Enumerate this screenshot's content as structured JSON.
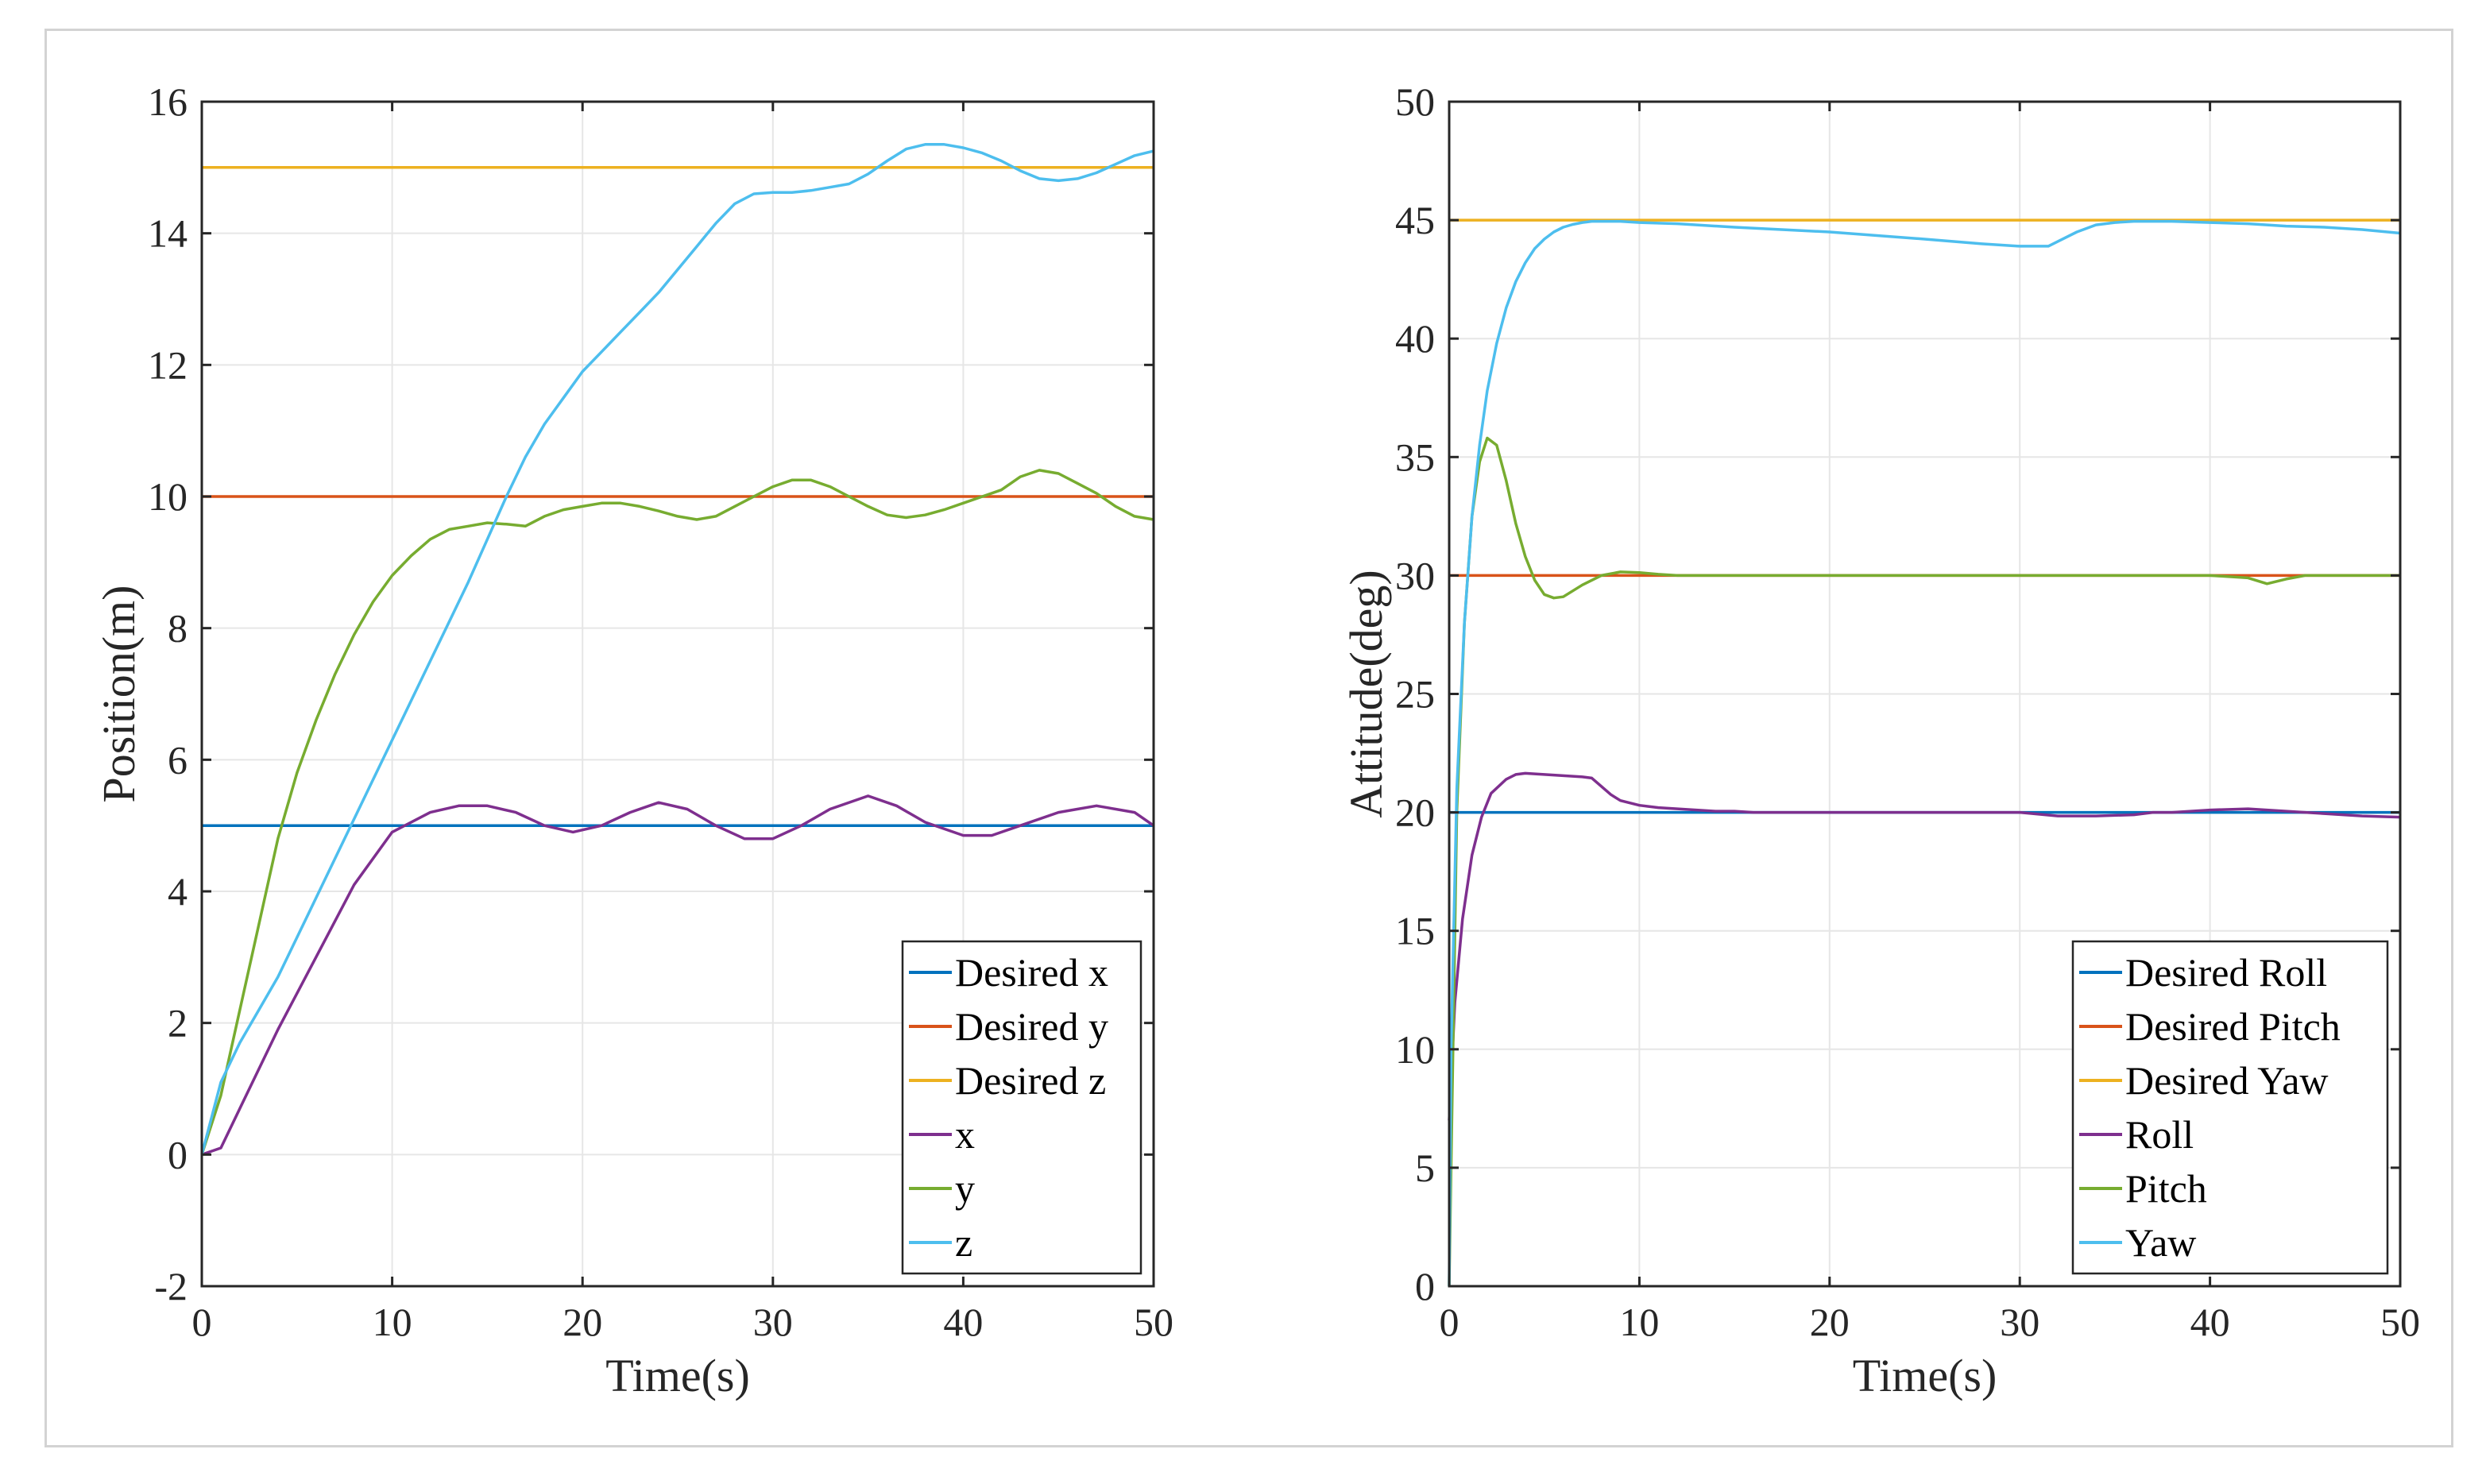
{
  "chart_data": [
    {
      "type": "line",
      "xlabel": "Time(s)",
      "ylabel": "Position(m)",
      "xlim": [
        0,
        50
      ],
      "ylim": [
        -2,
        16
      ],
      "xticks": [
        0,
        10,
        20,
        30,
        40,
        50
      ],
      "yticks": [
        -2,
        0,
        2,
        4,
        6,
        8,
        10,
        12,
        14,
        16
      ],
      "grid": true,
      "legend_position": "bottom-right",
      "series": [
        {
          "name": "Desired x",
          "color": "#0072BD",
          "x": [
            0,
            50
          ],
          "y": [
            5,
            5
          ]
        },
        {
          "name": "Desired y",
          "color": "#D95319",
          "x": [
            0,
            50
          ],
          "y": [
            10,
            10
          ]
        },
        {
          "name": "Desired z",
          "color": "#EDB120",
          "x": [
            0,
            50
          ],
          "y": [
            15,
            15
          ]
        },
        {
          "name": "x",
          "color": "#7E2F8E",
          "x": [
            0,
            1,
            2,
            4,
            6,
            8,
            10,
            12,
            13.5,
            15,
            16.5,
            18,
            19.5,
            21,
            22.5,
            24,
            25.5,
            27,
            28.5,
            30,
            31.5,
            33,
            35,
            36.5,
            38,
            40,
            41.5,
            43,
            45,
            47,
            49,
            50
          ],
          "y": [
            0,
            0.1,
            0.7,
            1.9,
            3.0,
            4.1,
            4.9,
            5.2,
            5.3,
            5.3,
            5.2,
            5.0,
            4.9,
            5.0,
            5.2,
            5.35,
            5.25,
            5.0,
            4.8,
            4.8,
            5.0,
            5.25,
            5.45,
            5.3,
            5.05,
            4.85,
            4.85,
            5.0,
            5.2,
            5.3,
            5.2,
            5.0
          ]
        },
        {
          "name": "y",
          "color": "#77AC30",
          "x": [
            0,
            1,
            2,
            3,
            4,
            5,
            6,
            7,
            8,
            9,
            10,
            11,
            12,
            13,
            14,
            15,
            16,
            17,
            18,
            19,
            20,
            21,
            22,
            23,
            24,
            25,
            26,
            27,
            28,
            29,
            30,
            31,
            32,
            33,
            34,
            35,
            36,
            37,
            38,
            39,
            40,
            41,
            42,
            43,
            44,
            45,
            46,
            47,
            48,
            49,
            50
          ],
          "y": [
            0,
            0.9,
            2.2,
            3.5,
            4.8,
            5.8,
            6.6,
            7.3,
            7.9,
            8.4,
            8.8,
            9.1,
            9.35,
            9.5,
            9.55,
            9.6,
            9.58,
            9.55,
            9.7,
            9.8,
            9.85,
            9.9,
            9.9,
            9.85,
            9.78,
            9.7,
            9.65,
            9.7,
            9.85,
            10.0,
            10.15,
            10.25,
            10.25,
            10.15,
            10.0,
            9.85,
            9.72,
            9.68,
            9.72,
            9.8,
            9.9,
            10.0,
            10.1,
            10.3,
            10.4,
            10.35,
            10.2,
            10.05,
            9.85,
            9.7,
            9.65
          ]
        },
        {
          "name": "z",
          "color": "#4DBEEE",
          "x": [
            0,
            1,
            2,
            3,
            4,
            5,
            6,
            7,
            8,
            9,
            10,
            11,
            12,
            13,
            14,
            15,
            16,
            17,
            18,
            19,
            20,
            21,
            22,
            23,
            24,
            25,
            26,
            27,
            28,
            29,
            30,
            31,
            32,
            33,
            34,
            35,
            36,
            37,
            38,
            39,
            40,
            41,
            42,
            43,
            44,
            45,
            46,
            47,
            48,
            49,
            50
          ],
          "y": [
            0,
            1.1,
            1.7,
            2.2,
            2.7,
            3.3,
            3.9,
            4.5,
            5.1,
            5.7,
            6.3,
            6.9,
            7.5,
            8.1,
            8.7,
            9.35,
            10.0,
            10.6,
            11.1,
            11.5,
            11.9,
            12.2,
            12.5,
            12.8,
            13.1,
            13.45,
            13.8,
            14.15,
            14.45,
            14.6,
            14.62,
            14.62,
            14.65,
            14.7,
            14.75,
            14.9,
            15.1,
            15.28,
            15.35,
            15.35,
            15.3,
            15.22,
            15.1,
            14.95,
            14.83,
            14.8,
            14.83,
            14.92,
            15.05,
            15.18,
            15.25
          ]
        }
      ]
    },
    {
      "type": "line",
      "xlabel": "Time(s)",
      "ylabel": "Attitude(deg)",
      "xlim": [
        0,
        50
      ],
      "ylim": [
        0,
        50
      ],
      "xticks": [
        0,
        10,
        20,
        30,
        40,
        50
      ],
      "yticks": [
        0,
        5,
        10,
        15,
        20,
        25,
        30,
        35,
        40,
        45,
        50
      ],
      "grid": true,
      "legend_position": "bottom-right",
      "series": [
        {
          "name": "Desired Roll",
          "color": "#0072BD",
          "x": [
            0,
            50
          ],
          "y": [
            20,
            20
          ]
        },
        {
          "name": "Desired Pitch",
          "color": "#D95319",
          "x": [
            0,
            50
          ],
          "y": [
            30,
            30
          ]
        },
        {
          "name": "Desired Yaw",
          "color": "#EDB120",
          "x": [
            0,
            50
          ],
          "y": [
            45,
            45
          ]
        },
        {
          "name": "Roll",
          "color": "#7E2F8E",
          "x": [
            0,
            0.3,
            0.7,
            1.2,
            1.7,
            2.2,
            3,
            3.5,
            4,
            5,
            6,
            7,
            7.5,
            8,
            8.5,
            9,
            10,
            11,
            12,
            13,
            14,
            15,
            16,
            18,
            20,
            22,
            24,
            26,
            28,
            30,
            32,
            34,
            36,
            37,
            38,
            40,
            42,
            44,
            46,
            48,
            50
          ],
          "y": [
            7,
            12,
            15.5,
            18.2,
            19.8,
            20.8,
            21.4,
            21.6,
            21.65,
            21.6,
            21.55,
            21.5,
            21.45,
            21.1,
            20.75,
            20.5,
            20.3,
            20.2,
            20.15,
            20.1,
            20.05,
            20.05,
            20.0,
            20.0,
            20.0,
            20.0,
            20.0,
            20.0,
            20.0,
            20.0,
            19.85,
            19.85,
            19.9,
            20.0,
            20.0,
            20.1,
            20.15,
            20.05,
            19.95,
            19.85,
            19.8
          ]
        },
        {
          "name": "Pitch",
          "color": "#77AC30",
          "x": [
            0,
            0.4,
            0.8,
            1.2,
            1.6,
            2.0,
            2.5,
            3.0,
            3.5,
            4.0,
            4.5,
            5.0,
            5.5,
            6.0,
            7.0,
            8.0,
            9.0,
            10.0,
            11.0,
            12.0,
            15.0,
            20.0,
            25.0,
            30.0,
            35.0,
            40.0,
            42.0,
            43.0,
            44.0,
            45.0,
            50.0
          ],
          "y": [
            0,
            20,
            28,
            32.5,
            34.8,
            35.8,
            35.5,
            34.0,
            32.2,
            30.8,
            29.8,
            29.2,
            29.05,
            29.1,
            29.6,
            30.0,
            30.15,
            30.12,
            30.05,
            30.0,
            30.0,
            30.0,
            30.0,
            30.0,
            30.0,
            30.0,
            29.9,
            29.65,
            29.85,
            30.0,
            30.0
          ]
        },
        {
          "name": "Yaw",
          "color": "#4DBEEE",
          "x": [
            0,
            0.1,
            0.4,
            0.8,
            1.2,
            1.6,
            2.0,
            2.5,
            3.0,
            3.5,
            4.0,
            4.5,
            5.0,
            5.5,
            6.0,
            6.5,
            7.0,
            7.5,
            8.0,
            9.0,
            10.0,
            12.0,
            15.0,
            20.0,
            25.0,
            28.0,
            30.0,
            31.5,
            32.0,
            33.0,
            34.0,
            35.0,
            36.0,
            38.0,
            40.0,
            42.0,
            44.0,
            46.0,
            48.0,
            50.0
          ],
          "y": [
            0,
            10,
            21,
            28,
            32.5,
            35.5,
            37.8,
            39.8,
            41.3,
            42.4,
            43.2,
            43.8,
            44.2,
            44.5,
            44.7,
            44.82,
            44.9,
            44.95,
            44.95,
            44.95,
            44.9,
            44.85,
            44.7,
            44.5,
            44.2,
            44.0,
            43.9,
            43.9,
            44.1,
            44.5,
            44.8,
            44.9,
            44.95,
            44.95,
            44.9,
            44.85,
            44.75,
            44.7,
            44.6,
            44.45
          ]
        }
      ]
    }
  ]
}
